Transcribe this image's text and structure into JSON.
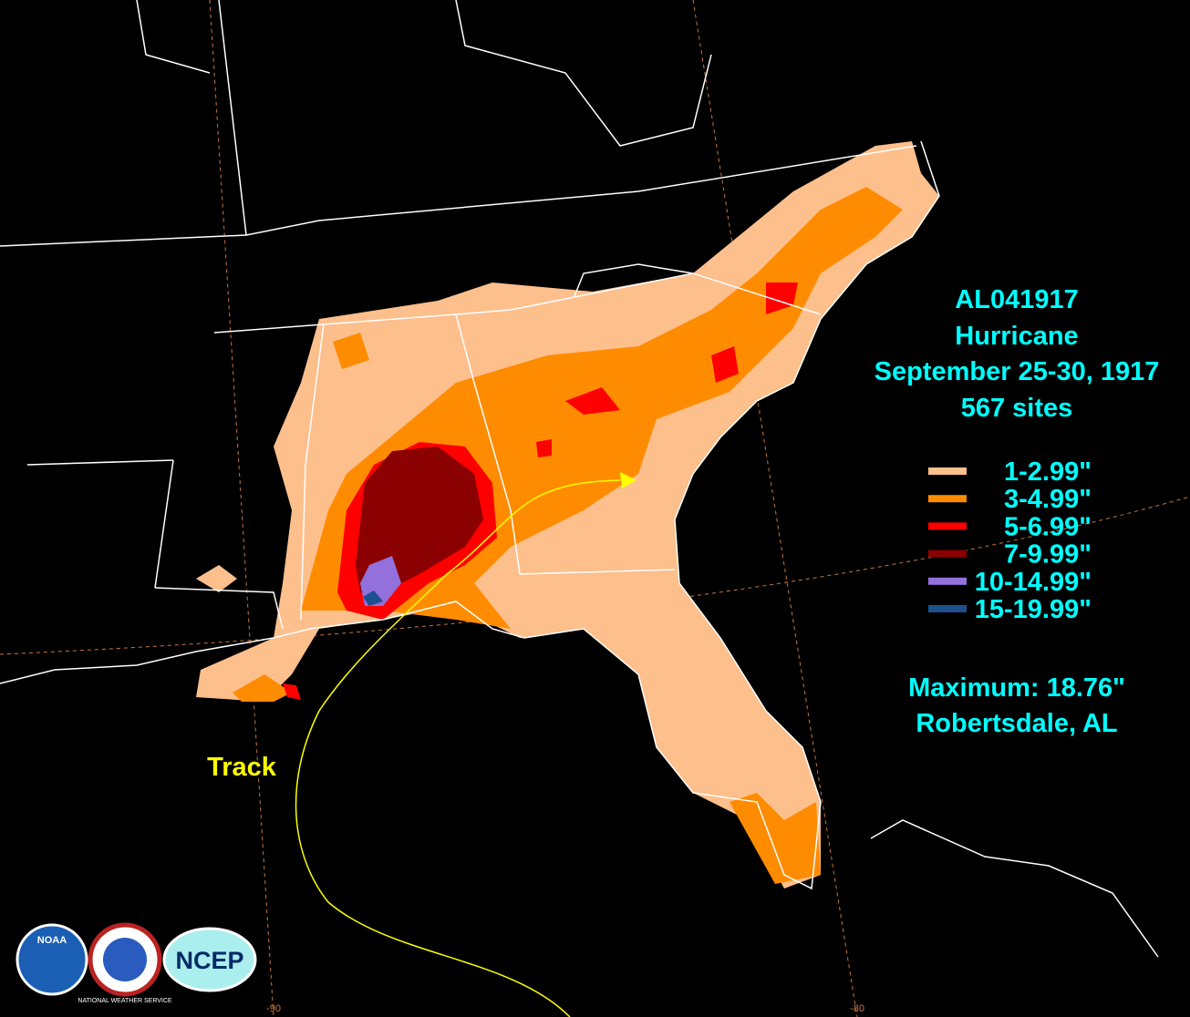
{
  "title": {
    "id": "AL041917",
    "name": "Hurricane",
    "dates": "September 25-30, 1917",
    "sites": "567 sites"
  },
  "legend": [
    {
      "label": "1-2.99\"",
      "color": "#fdbf8c"
    },
    {
      "label": "3-4.99\"",
      "color": "#ff8c00"
    },
    {
      "label": "5-6.99\"",
      "color": "#ff0000"
    },
    {
      "label": "7-9.99\"",
      "color": "#8b0000"
    },
    {
      "label": "10-14.99\"",
      "color": "#9370db"
    },
    {
      "label": "15-19.99\"",
      "color": "#1e5090"
    }
  ],
  "maximum": {
    "label": "Maximum: 18.76\"",
    "location": "Robertsdale, AL"
  },
  "track_label": "Track",
  "logos": [
    "NOAA",
    "NATIONAL WEATHER SERVICE",
    "NCEP"
  ],
  "longitude_labels": [
    "-90",
    "-80"
  ]
}
